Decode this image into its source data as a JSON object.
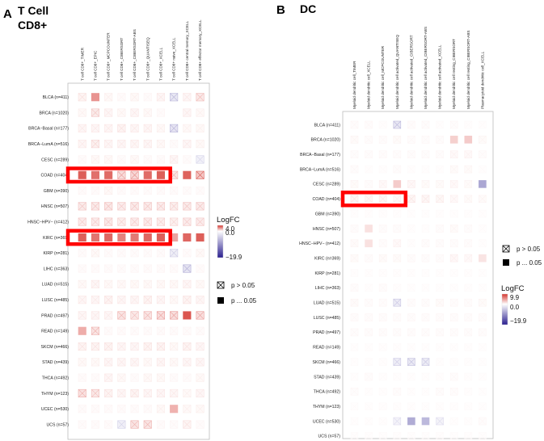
{
  "panels": [
    {
      "letter": "A",
      "title_line1": "T  Cell",
      "title_line2": "CD8+",
      "legend": {
        "title": "LogFC",
        "max_label": "4.0",
        "mid_label": "0.0",
        "min_label": "−19.9",
        "ns_label": "p > 0.05",
        "sig_label": "p ... 0.05"
      }
    },
    {
      "letter": "B",
      "title_line1": "DC",
      "title_line2": "",
      "legend": {
        "title": "LogFC",
        "max_label": "9.9",
        "mid_label": "0.0",
        "min_label": "−19.9",
        "ns_label": "p > 0.05",
        "sig_label": "p ... 0.05"
      }
    }
  ],
  "chart_data": [
    {
      "type": "heatmap",
      "title": "T  Cell CD8+",
      "columns": [
        "T cell CD8+_TIMER",
        "T cell CD8+_EPIC",
        "T cell CD8+_MCPCOUNTER",
        "T cell CD8+_CIBERSORT",
        "T cell CD8+_CIBERSORT-ABS",
        "T cell CD8+_QUANTISEQ",
        "T cell CD8+_XCELL",
        "T cell CD8+ naive_XCELL",
        "T cell CD8+ central memory_XCELL",
        "T cell CD8+ effector memory_XCELL"
      ],
      "rows": [
        "BLCA (n=411)",
        "BRCA (n=1020)",
        "BRCA−Basal (n=177)",
        "BRCA−LumA (n=516)",
        "CESC (n=289)",
        "COAD (n=404)",
        "GBM (n=390)",
        "HNSC (n=507)",
        "HNSC−HPV− (n=412)",
        "KIRC (n=369)",
        "KIRP (n=281)",
        "LIHC (n=363)",
        "LUAD (n=515)",
        "LUSC (n=485)",
        "PRAD (n=497)",
        "READ (n=149)",
        "SKCM (n=466)",
        "STAD (n=439)",
        "THCA (n=492)",
        "THYM (n=123)",
        "UCEC (n=530)",
        "UCS (n=57)"
      ],
      "values": [
        [
          0.4,
          1.8,
          0.2,
          0.1,
          0.2,
          0.1,
          0.3,
          -1.5,
          0.3,
          1.0
        ],
        [
          0.2,
          0.9,
          0.3,
          0.2,
          0.3,
          0.2,
          0.1,
          0,
          0.3,
          0.2
        ],
        [
          0.3,
          0.3,
          0.3,
          0.4,
          0.3,
          0.3,
          0.2,
          -1.8,
          0.2,
          0.2
        ],
        [
          0.3,
          0.6,
          0.3,
          0.3,
          0.3,
          0.3,
          0.2,
          0.1,
          0.3,
          0.2
        ],
        [
          0.1,
          0.2,
          0.2,
          0.1,
          0.2,
          0.1,
          0.1,
          0.3,
          0.1,
          -0.5
        ],
        [
          3.0,
          2.6,
          2.7,
          1.6,
          1.9,
          2.7,
          3.0,
          1.2,
          2.9,
          3.0
        ],
        [
          0.1,
          0.1,
          0.2,
          0.1,
          0.1,
          0.1,
          0.1,
          0.1,
          0.1,
          0.1
        ],
        [
          0.9,
          0.9,
          1.0,
          0.8,
          0.9,
          0.9,
          0.8,
          0.7,
          0.9,
          0.9
        ],
        [
          0.8,
          0.8,
          0.9,
          0.7,
          0.8,
          0.8,
          0.7,
          0.6,
          0.8,
          0.8
        ],
        [
          3.0,
          2.5,
          2.8,
          2.2,
          2.4,
          2.8,
          3.0,
          1.5,
          2.8,
          3.0
        ],
        [
          0.1,
          0.2,
          0.1,
          0.1,
          0.1,
          0.1,
          0.1,
          -0.7,
          0.1,
          0.2
        ],
        [
          0.1,
          0.1,
          0.1,
          0.1,
          0.1,
          0.1,
          0.1,
          0.1,
          -2.0,
          0.1
        ],
        [
          0.2,
          0.3,
          0.2,
          0.2,
          0.2,
          0.2,
          0.2,
          0.2,
          0.3,
          0.2
        ],
        [
          0.3,
          0.3,
          0.4,
          0.3,
          0.3,
          0.4,
          0.3,
          0.2,
          0.4,
          0.3
        ],
        [
          0.3,
          0.3,
          0.3,
          1.2,
          1.0,
          1.2,
          1.6,
          1.6,
          3.2,
          1.6
        ],
        [
          1.3,
          1.2,
          0.1,
          0.1,
          0.1,
          0.1,
          0.1,
          0.1,
          0.1,
          0.1
        ],
        [
          0.4,
          0.4,
          0.4,
          0.3,
          0.3,
          0.4,
          0.4,
          0.2,
          0.4,
          0.3
        ],
        [
          0.2,
          0.2,
          0.3,
          0.3,
          0.3,
          0.2,
          0.3,
          0.2,
          0.3,
          0.3
        ],
        [
          0.1,
          0.1,
          0.3,
          0.2,
          0.1,
          0.2,
          0.2,
          0.1,
          0.1,
          0.2
        ],
        [
          1.3,
          1.0,
          0.4,
          0.3,
          0.4,
          0.3,
          0.3,
          0.3,
          0.2,
          0.3
        ],
        [
          0.1,
          0.1,
          0.1,
          0.1,
          0.1,
          0.1,
          0.2,
          1.2,
          0.2,
          0.2
        ],
        [
          0.1,
          0.1,
          0.1,
          -0.6,
          1.2,
          1.2,
          0.1,
          0.1,
          0.4,
          0.1
        ]
      ],
      "significant": [
        [
          false,
          true,
          false,
          false,
          false,
          false,
          false,
          false,
          false,
          false
        ],
        [
          false,
          false,
          false,
          false,
          false,
          false,
          false,
          false,
          false,
          false
        ],
        [
          false,
          false,
          false,
          false,
          false,
          false,
          false,
          false,
          false,
          false
        ],
        [
          false,
          false,
          false,
          false,
          false,
          false,
          false,
          false,
          false,
          false
        ],
        [
          false,
          false,
          false,
          false,
          false,
          false,
          false,
          false,
          false,
          false
        ],
        [
          true,
          true,
          true,
          false,
          false,
          true,
          true,
          false,
          true,
          false
        ],
        [
          false,
          false,
          false,
          false,
          false,
          false,
          false,
          false,
          false,
          false
        ],
        [
          false,
          false,
          false,
          false,
          false,
          false,
          false,
          false,
          false,
          false
        ],
        [
          false,
          false,
          false,
          false,
          false,
          false,
          false,
          false,
          false,
          false
        ],
        [
          true,
          true,
          true,
          true,
          true,
          true,
          true,
          true,
          true,
          true
        ],
        [
          false,
          false,
          false,
          false,
          false,
          false,
          false,
          false,
          false,
          false
        ],
        [
          false,
          false,
          false,
          false,
          false,
          false,
          false,
          false,
          false,
          false
        ],
        [
          false,
          false,
          false,
          false,
          false,
          false,
          false,
          false,
          false,
          false
        ],
        [
          false,
          false,
          false,
          false,
          false,
          false,
          false,
          false,
          false,
          false
        ],
        [
          false,
          false,
          false,
          false,
          false,
          false,
          false,
          false,
          true,
          false
        ],
        [
          true,
          false,
          false,
          false,
          false,
          false,
          false,
          false,
          false,
          false
        ],
        [
          false,
          false,
          false,
          false,
          false,
          false,
          false,
          false,
          false,
          false
        ],
        [
          false,
          false,
          false,
          false,
          false,
          false,
          false,
          false,
          false,
          false
        ],
        [
          false,
          false,
          false,
          false,
          false,
          false,
          false,
          false,
          false,
          false
        ],
        [
          false,
          false,
          false,
          false,
          false,
          false,
          false,
          false,
          false,
          false
        ],
        [
          false,
          false,
          false,
          false,
          false,
          false,
          false,
          true,
          false,
          false
        ],
        [
          false,
          false,
          false,
          false,
          false,
          false,
          false,
          false,
          false,
          false
        ]
      ],
      "highlighted_rows": [
        "COAD (n=404)",
        "KIRC (n=369)"
      ],
      "color_scale": {
        "title": "LogFC",
        "min": -19.9,
        "mid": 0.0,
        "max": 4.0,
        "low_color": "#2a1f8f",
        "mid_color": "#ffffff",
        "high_color": "#d4352e"
      },
      "highlight_color": "#ff0000",
      "legend_position": "right"
    },
    {
      "type": "heatmap",
      "title": "DC",
      "columns": [
        "Myeloid dendritic cell_TIMER",
        "Myeloid dendritic cell_XCELL",
        "Myeloid dendritic cell_MCPCOUNTER",
        "Myeloid dendritic cell activated_QUANTISEQ",
        "Myeloid dendritic cell activated_CIBERSORT",
        "Myeloid dendritic cell activated_CIBERSORT-ABS",
        "Myeloid dendritic cell activated_XCELL",
        "Myeloid dendritic cell resting_CIBERSORT",
        "Myeloid dendritic cell resting_CIBERSORT-ABS",
        "Plasmacytoid dendritic cell_XCELL"
      ],
      "rows": [
        "BLCA (n=411)",
        "BRCA (n=1020)",
        "BRCA−Basal (n=177)",
        "BRCA−LumA (n=516)",
        "CESC (n=289)",
        "COAD (n=404)",
        "GBM (n=390)",
        "HNSC (n=507)",
        "HNSC−HPV− (n=412)",
        "KIRC (n=369)",
        "KIRP (n=281)",
        "LIHC (n=363)",
        "LUAD (n=515)",
        "LUSC (n=485)",
        "PRAD (n=497)",
        "READ (n=149)",
        "SKCM (n=466)",
        "STAD (n=439)",
        "THCA (n=492)",
        "THYM (n=123)",
        "UCEC (n=530)",
        "UCS (n=57)"
      ],
      "values": [
        [
          0.2,
          0.2,
          0.1,
          -1.5,
          0.2,
          0.2,
          0.1,
          0.2,
          0.1,
          0.1
        ],
        [
          0.3,
          0.2,
          0.2,
          0.3,
          0.2,
          0.2,
          0.2,
          1.6,
          1.8,
          0.3
        ],
        [
          0.2,
          0.2,
          0.2,
          0.2,
          0.2,
          0.2,
          0.2,
          0.4,
          0.4,
          0.2
        ],
        [
          0.2,
          0.1,
          0.1,
          0.2,
          0.1,
          0.1,
          0.1,
          0.3,
          0.3,
          0.1
        ],
        [
          0.3,
          0.2,
          0.4,
          1.8,
          0.5,
          0.3,
          0.3,
          0.4,
          0.3,
          -2.5
        ],
        [
          0.8,
          0.6,
          0.7,
          0.5,
          0.8,
          0.7,
          0.6,
          0.4,
          0.3,
          0.3
        ],
        [
          0.1,
          0.1,
          0.1,
          0.1,
          0.1,
          0.1,
          0.1,
          0.1,
          0.1,
          0.1
        ],
        [
          0.2,
          0.9,
          0.2,
          0.2,
          0.1,
          0.1,
          0.2,
          0.3,
          0.2,
          0.1
        ],
        [
          0.3,
          0.9,
          0.2,
          0.4,
          0.1,
          0.2,
          0.2,
          0.2,
          0.2,
          0.1
        ],
        [
          0.3,
          0.2,
          0.3,
          0.3,
          0.2,
          0.2,
          0.2,
          0.5,
          0.4,
          0.8
        ],
        [
          0.1,
          0.1,
          0.1,
          0.1,
          0.1,
          0.1,
          0.1,
          0.1,
          0.1,
          0.1
        ],
        [
          0.2,
          0.1,
          0.2,
          0.1,
          0.1,
          0.1,
          0.1,
          0.1,
          0.1,
          0.1
        ],
        [
          0.3,
          0.2,
          0.2,
          -1.0,
          0.2,
          0.2,
          0.3,
          0.2,
          0.2,
          0.3
        ],
        [
          0.2,
          0.2,
          0.2,
          0.2,
          0.2,
          0.2,
          0.2,
          0.2,
          0.2,
          0.2
        ],
        [
          0.2,
          0.2,
          0.2,
          0.2,
          0.2,
          0.2,
          0.2,
          0.2,
          0.2,
          0.2
        ],
        [
          0.1,
          0.1,
          0.1,
          0.1,
          0.1,
          0.1,
          0.1,
          0.1,
          0.1,
          0.1
        ],
        [
          0.1,
          0.1,
          0.1,
          -0.8,
          -1.2,
          -1.0,
          0.1,
          0.1,
          0.1,
          0.1
        ],
        [
          0.1,
          0.2,
          0.1,
          0.1,
          0.1,
          0.1,
          0.1,
          0.2,
          0.1,
          0.1
        ],
        [
          0.2,
          0.1,
          0.1,
          0.2,
          0.1,
          0.1,
          0.2,
          0.2,
          0.1,
          0.1
        ],
        [
          0.1,
          0.1,
          0.1,
          0.1,
          0.1,
          0.1,
          0.1,
          0.1,
          0.1,
          0.1
        ],
        [
          0.1,
          0.1,
          0.1,
          -0.3,
          -2.2,
          -1.5,
          -0.3,
          0.1,
          0.1,
          0.2
        ],
        [
          0.1,
          0.1,
          0.1,
          0.1,
          0.1,
          0.1,
          0.1,
          0.1,
          0.1,
          0.1
        ]
      ],
      "significant": [
        [
          false,
          false,
          false,
          false,
          false,
          false,
          false,
          false,
          false,
          false
        ],
        [
          false,
          false,
          false,
          false,
          false,
          false,
          false,
          true,
          true,
          false
        ],
        [
          false,
          false,
          false,
          false,
          false,
          false,
          false,
          false,
          false,
          false
        ],
        [
          false,
          false,
          false,
          false,
          false,
          false,
          false,
          false,
          false,
          false
        ],
        [
          false,
          false,
          false,
          true,
          false,
          false,
          false,
          false,
          false,
          true
        ],
        [
          false,
          false,
          false,
          false,
          false,
          false,
          false,
          false,
          false,
          false
        ],
        [
          false,
          false,
          false,
          false,
          false,
          false,
          false,
          false,
          false,
          false
        ],
        [
          false,
          true,
          false,
          false,
          false,
          false,
          false,
          false,
          false,
          false
        ],
        [
          false,
          true,
          false,
          false,
          false,
          false,
          false,
          false,
          false,
          false
        ],
        [
          false,
          false,
          false,
          false,
          false,
          false,
          false,
          false,
          false,
          true
        ],
        [
          false,
          false,
          false,
          false,
          false,
          false,
          false,
          false,
          false,
          false
        ],
        [
          false,
          false,
          false,
          false,
          false,
          false,
          false,
          false,
          false,
          false
        ],
        [
          false,
          false,
          false,
          false,
          false,
          false,
          false,
          false,
          false,
          false
        ],
        [
          false,
          false,
          false,
          false,
          false,
          false,
          false,
          false,
          false,
          false
        ],
        [
          false,
          false,
          false,
          false,
          false,
          false,
          false,
          false,
          false,
          false
        ],
        [
          false,
          false,
          false,
          false,
          false,
          false,
          false,
          false,
          false,
          false
        ],
        [
          false,
          false,
          false,
          false,
          false,
          false,
          false,
          false,
          false,
          false
        ],
        [
          false,
          false,
          false,
          false,
          false,
          false,
          false,
          false,
          false,
          false
        ],
        [
          false,
          false,
          false,
          false,
          false,
          false,
          false,
          false,
          false,
          false
        ],
        [
          false,
          false,
          false,
          false,
          false,
          false,
          false,
          false,
          false,
          false
        ],
        [
          false,
          false,
          false,
          false,
          true,
          true,
          false,
          false,
          false,
          false
        ],
        [
          false,
          false,
          false,
          false,
          false,
          false,
          false,
          false,
          false,
          false
        ]
      ],
      "highlighted_rows": [
        "COAD (n=404)"
      ],
      "color_scale": {
        "title": "LogFC",
        "min": -19.9,
        "mid": 0.0,
        "max": 9.9,
        "low_color": "#2a1f8f",
        "mid_color": "#ffffff",
        "high_color": "#d4352e"
      },
      "highlight_color": "#ff0000",
      "legend_position": "right"
    }
  ]
}
